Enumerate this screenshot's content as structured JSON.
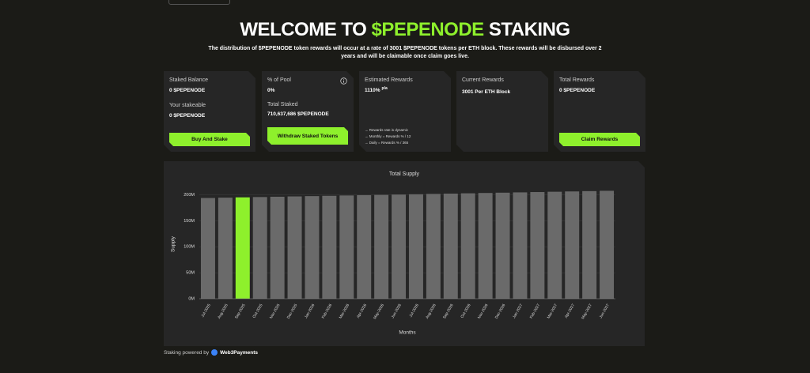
{
  "header": {
    "title_start": "WELCOME TO",
    "title_highlight": "$PEPENODE",
    "title_end": "STAKING",
    "description": "The distribution of $PEPENODE token rewards will occur at a rate of 3001 $PEPENODE tokens per ETH block. These rewards will be disbursed over 2 years and will be claimable once claim goes live."
  },
  "cards": [
    {
      "label": "Staked Balance",
      "value": "0 $PEPENODE",
      "label2": "Your stakeable",
      "value2": "0 $PEPENODE",
      "button": "Buy And Stake"
    },
    {
      "label": "% of Pool",
      "value": "0%",
      "label2": "Total Staked",
      "value2": "710,637,686 $PEPENODE",
      "button": "Withdraw Staked Tokens"
    },
    {
      "label": "Estimated Rewards",
      "value": "1110%",
      "unit": "p/a",
      "notes": [
        "→ Rewards rate is dynamic",
        "→ Monthly = Rewards % / 12",
        "→ Daily = Rewards % / 365"
      ]
    },
    {
      "label": "Current Rewards",
      "value": "3001",
      "unit": "Per ETH Block"
    },
    {
      "label": "Total Rewards",
      "value": "0 $PEPENODE",
      "button": "Claim Rewards"
    }
  ],
  "chart_data": {
    "type": "bar",
    "title": "Total Supply",
    "x_label": "Months",
    "y_label": "Supply",
    "categories": [
      "Jul-2025",
      "Aug-2025",
      "Sep-2025",
      "Oct-2025",
      "Nov-2025",
      "Dec-2025",
      "Jan-2026",
      "Feb-2026",
      "Mar-2026",
      "Apr-2026",
      "May-2026",
      "Jun-2026",
      "Jul-2026",
      "Aug-2026",
      "Sep-2026",
      "Oct-2026",
      "Nov-2026",
      "Dec-2026",
      "Jan-2027",
      "Feb-2027",
      "Mar-2027",
      "Apr-2027",
      "May-2027",
      "Jun-2027"
    ],
    "values": [
      194,
      194.6,
      195.2,
      195.8,
      196.4,
      197,
      197.6,
      198.2,
      198.8,
      199.4,
      200,
      200.6,
      201.2,
      201.8,
      202.4,
      203,
      203.6,
      204.2,
      204.8,
      205.4,
      206,
      206.6,
      207.2,
      207.8
    ],
    "colors": [
      "#6a6a6a",
      "#6a6a6a",
      "#8ef02c",
      "#6a6a6a",
      "#6a6a6a",
      "#6a6a6a",
      "#6a6a6a",
      "#6a6a6a",
      "#6a6a6a",
      "#6a6a6a",
      "#6a6a6a",
      "#6a6a6a",
      "#6a6a6a",
      "#6a6a6a",
      "#6a6a6a",
      "#6a6a6a",
      "#6a6a6a",
      "#6a6a6a",
      "#6a6a6a",
      "#6a6a6a",
      "#6a6a6a",
      "#6a6a6a",
      "#6a6a6a",
      "#6a6a6a"
    ],
    "ylim": [
      0,
      210
    ],
    "yticks": [
      {
        "value": 0,
        "label": "0M"
      },
      {
        "value": 50,
        "label": "50M"
      },
      {
        "value": 100,
        "label": "100M"
      },
      {
        "value": 150,
        "label": "150M"
      },
      {
        "value": 200,
        "label": "200M"
      }
    ],
    "grid": true
  },
  "footer": {
    "text": "Staking powered by",
    "brand": "Web3Payments"
  }
}
